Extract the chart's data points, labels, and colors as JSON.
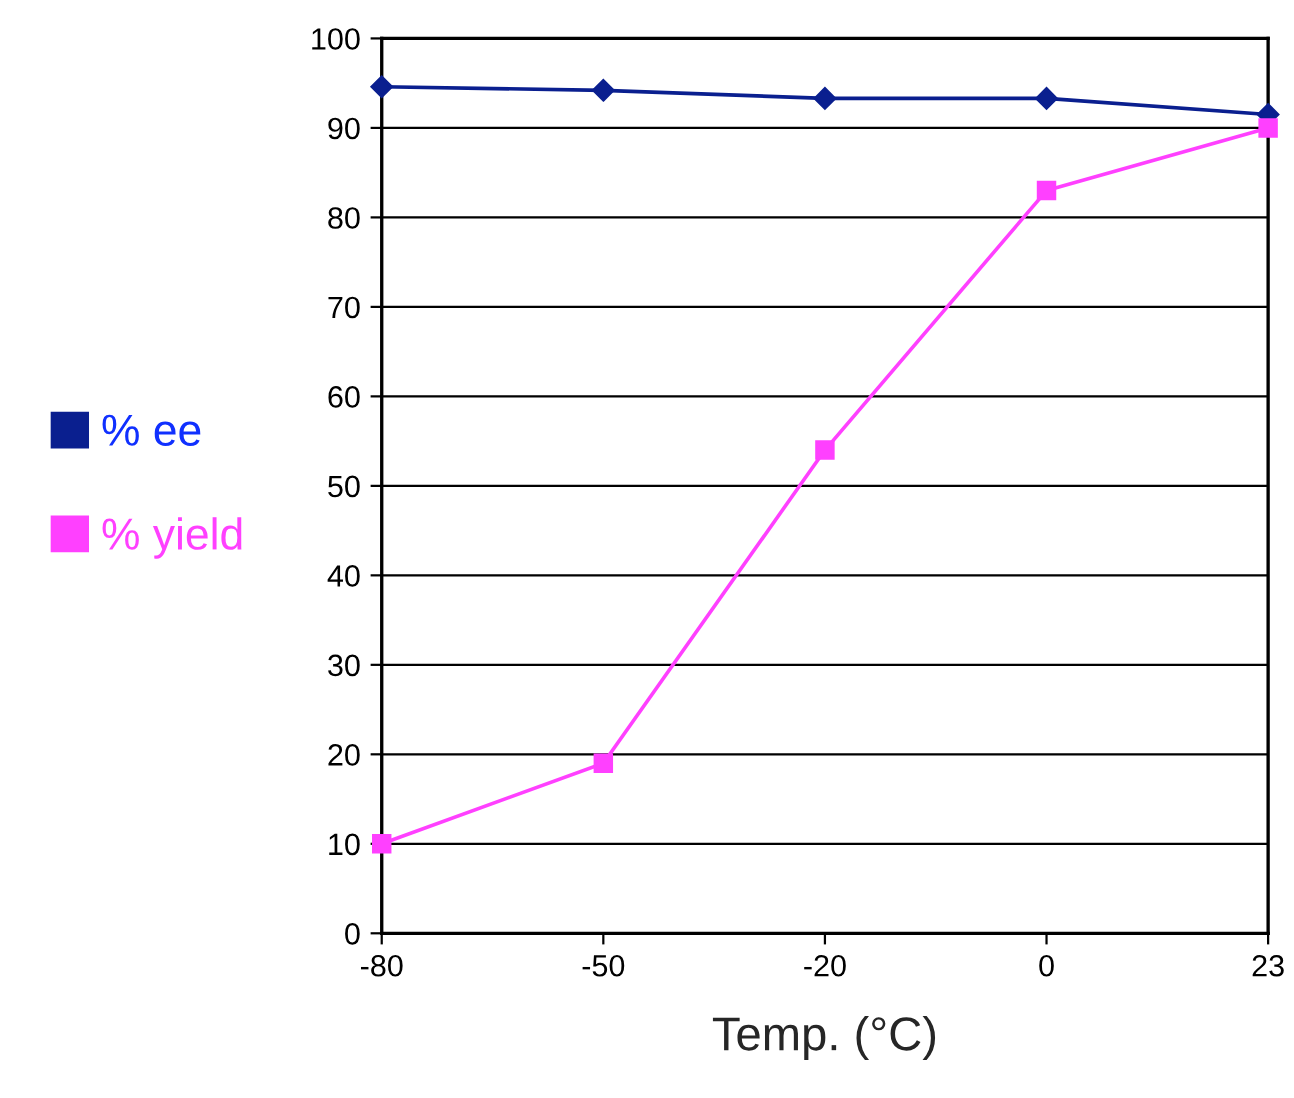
{
  "chart_data": {
    "type": "line",
    "xlabel": "Temp. (°C)",
    "categories": [
      "-80",
      "-50",
      "-20",
      "0",
      "23"
    ],
    "series": [
      {
        "name": "% ee",
        "color": "#0a1f8f",
        "values": [
          94.6,
          94.2,
          93.3,
          93.3,
          91.5
        ],
        "marker": "diamond"
      },
      {
        "name": "% yield",
        "color": "#ff40ff",
        "values": [
          10,
          19,
          54,
          83,
          90
        ],
        "marker": "square"
      }
    ],
    "ylim": [
      0,
      100
    ],
    "yticks": [
      0,
      10,
      20,
      30,
      40,
      50,
      60,
      70,
      80,
      90,
      100
    ],
    "grid": "y",
    "legend": "left",
    "line_style": "solid"
  }
}
